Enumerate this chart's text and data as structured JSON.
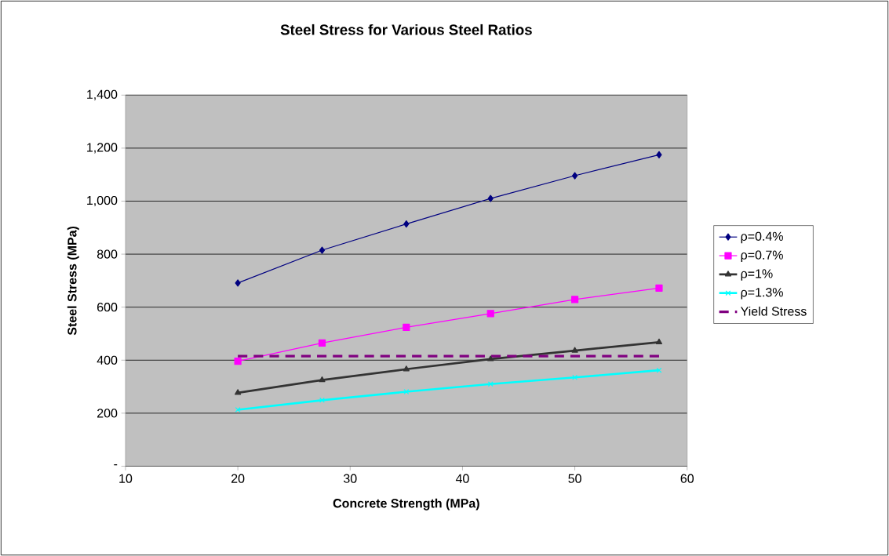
{
  "chart_data": {
    "type": "line",
    "title": "Steel Stress for Various Steel Ratios",
    "xlabel": "Concrete Strength (MPa)",
    "ylabel": "Steel Stress (MPa)",
    "x": [
      20,
      27.5,
      35,
      42.5,
      50,
      57.5
    ],
    "series": [
      {
        "name": "ρ=0.4%",
        "color": "#000080",
        "marker": "diamond",
        "line_style": "solid",
        "values": [
          691,
          815,
          914,
          1010,
          1096,
          1175
        ]
      },
      {
        "name": "ρ=0.7%",
        "color": "#ff00ff",
        "marker": "square",
        "line_style": "solid",
        "values": [
          396,
          465,
          524,
          576,
          629,
          672
        ]
      },
      {
        "name": "ρ=1%",
        "color": "#333333",
        "marker": "triangle",
        "line_style": "solid",
        "values": [
          277,
          325,
          366,
          404,
          436,
          468
        ]
      },
      {
        "name": "ρ=1.3%",
        "color": "#00ffff",
        "marker": "cross",
        "line_style": "solid",
        "values": [
          213,
          249,
          281,
          310,
          335,
          362
        ]
      },
      {
        "name": "Yield Stress",
        "color": "#800080",
        "marker": "none",
        "line_style": "dashed",
        "values": [
          415,
          415,
          415,
          415,
          415,
          415
        ]
      }
    ],
    "xlim": [
      10,
      60
    ],
    "xticks": [
      10,
      20,
      30,
      40,
      50,
      60
    ],
    "ylim": [
      0,
      1400
    ],
    "yticks": [
      {
        "value": 0,
        "label": "-"
      },
      200,
      400,
      600,
      800,
      {
        "value": 1000,
        "label": "1,000"
      },
      {
        "value": 1200,
        "label": "1,200"
      },
      {
        "value": 1400,
        "label": "1,400"
      }
    ],
    "grid": "y",
    "legend": "right"
  }
}
